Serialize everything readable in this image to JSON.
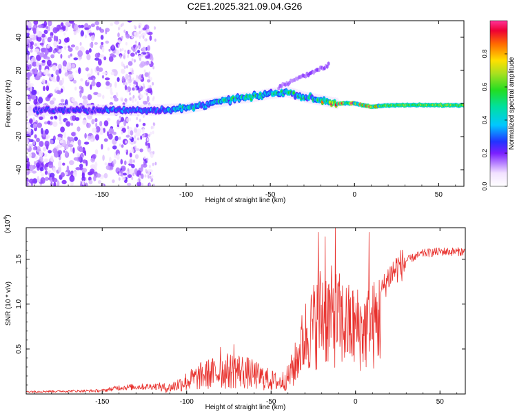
{
  "title": "C2E1.2025.321.09.04.G26",
  "chart_data": [
    {
      "type": "heatmap",
      "name": "spectrogram",
      "xlabel": "Height of straight line (km)",
      "ylabel": "Frequency (Hz)",
      "xlim": [
        -195,
        65
      ],
      "ylim": [
        -50,
        50
      ],
      "xticks": [
        -150,
        -100,
        -50,
        0,
        50
      ],
      "xtick_labels": [
        "-150",
        "-100",
        "-50",
        "0",
        "50"
      ],
      "yticks": [
        -40,
        -20,
        0,
        20,
        40
      ],
      "ytick_labels": [
        "-40",
        "-20",
        "0",
        "20",
        "40"
      ],
      "ridge": {
        "description": "dominant frequency track vs height",
        "x": [
          -185,
          -160,
          -140,
          -120,
          -100,
          -90,
          -80,
          -70,
          -60,
          -50,
          -40,
          -30,
          -20,
          -10,
          0,
          10,
          20,
          30,
          40,
          50,
          62
        ],
        "y": [
          -4,
          -4,
          -4,
          -4,
          -3,
          -1,
          1,
          3,
          4,
          6,
          7,
          4,
          2,
          0,
          0,
          -2,
          -1,
          -1,
          -1,
          -1,
          -1
        ]
      },
      "colorbar": {
        "label": "Normalized spectral amplitude",
        "ticks": [
          0.0,
          0.2,
          0.4,
          0.6,
          0.8
        ],
        "tick_labels": [
          "0.0",
          "0.2",
          "0.4",
          "0.6",
          "0.8"
        ],
        "range": [
          0,
          1
        ]
      }
    },
    {
      "type": "line",
      "name": "snr",
      "xlabel": "Height of straight line (km)",
      "ylabel": "SNR (10 * v/v)",
      "multiplier_label": "(x10",
      "multiplier_exp": "4",
      "xlim": [
        -195,
        65
      ],
      "ylim": [
        0,
        1.85
      ],
      "xticks": [
        -150,
        -100,
        -50,
        0,
        50
      ],
      "xtick_labels": [
        "-150",
        "-100",
        "-50",
        "0",
        "50"
      ],
      "yticks": [
        0.5,
        1.0,
        1.5
      ],
      "ytick_labels": [
        "0.5",
        "1.0",
        "1.5"
      ],
      "color": "#e8312d",
      "envelope": {
        "x": [
          -195,
          -150,
          -140,
          -110,
          -100,
          -90,
          -80,
          -70,
          -60,
          -50,
          -45,
          -40,
          -35,
          -30,
          -25,
          -20,
          -15,
          -10,
          -5,
          0,
          5,
          10,
          15,
          20,
          25,
          30,
          40,
          50,
          65
        ],
        "y": [
          0.03,
          0.04,
          0.08,
          0.1,
          0.2,
          0.3,
          0.35,
          0.38,
          0.3,
          0.22,
          0.18,
          0.26,
          0.5,
          0.85,
          1.0,
          1.2,
          1.15,
          1.1,
          1.0,
          0.98,
          0.95,
          1.0,
          1.15,
          1.35,
          1.45,
          1.5,
          1.58,
          1.6,
          1.6
        ]
      },
      "spikes": [
        {
          "x": -22,
          "y": 1.8
        },
        {
          "x": -18,
          "y": 1.75
        },
        {
          "x": -12,
          "y": 1.85
        },
        {
          "x": 8,
          "y": 1.8
        },
        {
          "x": -80,
          "y": 0.52
        },
        {
          "x": -72,
          "y": 0.55
        }
      ]
    }
  ]
}
